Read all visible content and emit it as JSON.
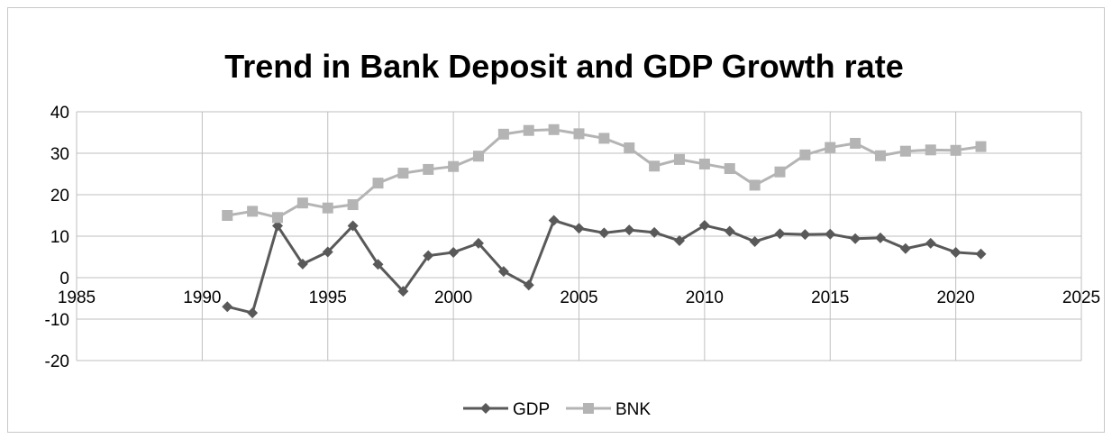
{
  "chart_data": {
    "type": "line",
    "title": "Trend in Bank Deposit and GDP Growth rate",
    "xlabel": "",
    "ylabel": "",
    "xlim": [
      1985,
      2025
    ],
    "ylim": [
      -20,
      40
    ],
    "x_ticks": [
      1985,
      1990,
      1995,
      2000,
      2005,
      2010,
      2015,
      2020,
      2025
    ],
    "y_ticks": [
      -20,
      -10,
      0,
      10,
      20,
      30,
      40
    ],
    "grid": true,
    "legend_position": "bottom",
    "x": [
      1991,
      1992,
      1993,
      1994,
      1995,
      1996,
      1997,
      1998,
      1999,
      2000,
      2001,
      2002,
      2003,
      2004,
      2005,
      2006,
      2007,
      2008,
      2009,
      2010,
      2011,
      2012,
      2013,
      2014,
      2015,
      2016,
      2017,
      2018,
      2019,
      2020,
      2021
    ],
    "series": [
      {
        "name": "GDP",
        "color": "#595959",
        "marker": "diamond",
        "values": [
          -7,
          -8.5,
          12.5,
          3.3,
          6.2,
          12.5,
          3.2,
          -3.3,
          5.3,
          6.1,
          8.3,
          1.5,
          -1.8,
          13.8,
          11.9,
          10.8,
          11.5,
          10.9,
          8.9,
          12.6,
          11.2,
          8.7,
          10.6,
          10.4,
          10.5,
          9.4,
          9.6,
          7.0,
          8.3,
          6.1,
          5.7
        ]
      },
      {
        "name": "BNK",
        "color": "#b4b4b4",
        "marker": "square",
        "values": [
          15.0,
          16.0,
          14.5,
          18.0,
          16.8,
          17.6,
          22.8,
          25.2,
          26.1,
          26.8,
          29.3,
          34.6,
          35.5,
          35.7,
          34.7,
          33.6,
          31.3,
          26.9,
          28.5,
          27.4,
          26.3,
          22.3,
          25.5,
          29.6,
          31.4,
          32.4,
          29.4,
          30.5,
          30.8,
          30.7,
          31.6
        ]
      }
    ]
  }
}
